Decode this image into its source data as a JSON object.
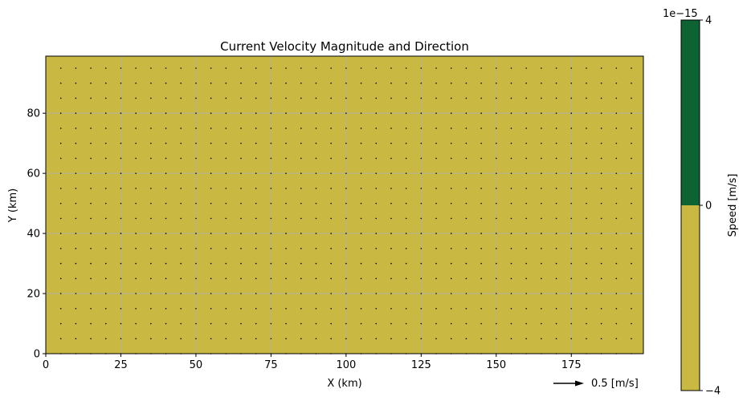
{
  "chart_data": {
    "type": "quiver",
    "title": "Current Velocity Magnitude and Direction",
    "xlabel": "X (km)",
    "ylabel": "Y (km)",
    "xlim": [
      0,
      199
    ],
    "ylim": [
      0,
      99
    ],
    "xticks": [
      0,
      25,
      50,
      75,
      100,
      125,
      150,
      175
    ],
    "yticks": [
      0,
      20,
      40,
      60,
      80
    ],
    "grid": true,
    "field_value": 0,
    "background_color": "#c9b842",
    "arrows": {
      "x_start": 5,
      "x_step": 5,
      "x_count": 39,
      "y_start": 0,
      "y_step": 5,
      "y_count": 20,
      "u": 0,
      "v": 0,
      "color": "#000000"
    },
    "quiver_key": {
      "label": "0.5 [m/s]",
      "value": 0.5
    },
    "colorbar": {
      "label": "Speed [m/s]",
      "multiplier": "1e−15",
      "ticks": [
        4,
        0,
        -4
      ],
      "tick_labels": [
        "4",
        "0",
        "−4"
      ],
      "segments": [
        {
          "from": 0,
          "to": 4,
          "color": "#0e6332"
        },
        {
          "from": -4,
          "to": 0,
          "color": "#c9b842"
        }
      ]
    }
  }
}
